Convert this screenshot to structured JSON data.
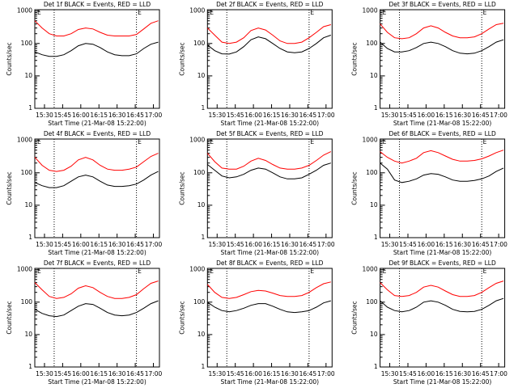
{
  "chart_data": [
    {
      "type": "line",
      "title": "Det 1f BLACK = Events, RED = LLD",
      "xlabel": "Start Time (21-Mar-08 15:22:00)",
      "ylabel": "Counts/sec",
      "log_scale": true,
      "xlim": [
        922,
        1025
      ],
      "ylim": [
        1,
        1100
      ],
      "yticks": [
        1,
        10,
        100,
        1000
      ],
      "xticks": [
        {
          "value": 930,
          "label": "15:30"
        },
        {
          "value": 945,
          "label": "15:45"
        },
        {
          "value": 960,
          "label": "16:00"
        },
        {
          "value": 975,
          "label": "16:15"
        },
        {
          "value": 990,
          "label": "16:30"
        },
        {
          "value": 1005,
          "label": "16:45"
        },
        {
          "value": 1020,
          "label": "17:00"
        }
      ],
      "vlines": [
        938,
        1006
      ],
      "annotations": [
        {
          "text": "E",
          "x": 924
        },
        {
          "text": "E",
          "x": 1007
        }
      ],
      "x": [
        922,
        928,
        934,
        940,
        946,
        952,
        958,
        964,
        970,
        976,
        982,
        988,
        994,
        1000,
        1006,
        1012,
        1018,
        1024
      ],
      "series": [
        {
          "color": "#ff0000",
          "values": [
            500,
            300,
            200,
            170,
            170,
            200,
            270,
            300,
            280,
            220,
            180,
            170,
            170,
            170,
            190,
            280,
            420,
            500
          ]
        },
        {
          "color": "#000000",
          "values": [
            55,
            45,
            40,
            40,
            45,
            60,
            85,
            100,
            95,
            75,
            55,
            45,
            42,
            42,
            48,
            70,
            95,
            110
          ]
        }
      ]
    },
    {
      "type": "line",
      "title": "Det 2f BLACK = Events, RED = LLD",
      "xlabel": "Start Time (21-Mar-08 15:22:00)",
      "ylabel": "Counts/sec",
      "log_scale": true,
      "xlim": [
        922,
        1025
      ],
      "ylim": [
        1,
        1100
      ],
      "yticks": [
        1,
        10,
        100,
        1000
      ],
      "xticks": [
        {
          "value": 930,
          "label": "15:30"
        },
        {
          "value": 945,
          "label": "15:45"
        },
        {
          "value": 960,
          "label": "16:00"
        },
        {
          "value": 975,
          "label": "16:15"
        },
        {
          "value": 990,
          "label": "16:30"
        },
        {
          "value": 1005,
          "label": "16:45"
        },
        {
          "value": 1020,
          "label": "17:00"
        }
      ],
      "vlines": [
        938,
        1006
      ],
      "annotations": [
        {
          "text": "E",
          "x": 924
        },
        {
          "text": "E",
          "x": 1007
        }
      ],
      "x": [
        922,
        928,
        934,
        940,
        946,
        952,
        958,
        964,
        970,
        976,
        982,
        988,
        994,
        1000,
        1006,
        1012,
        1018,
        1024
      ],
      "series": [
        {
          "color": "#ff0000",
          "values": [
            300,
            180,
            110,
            100,
            110,
            150,
            250,
            300,
            260,
            180,
            120,
            100,
            100,
            110,
            150,
            220,
            330,
            380
          ]
        },
        {
          "color": "#000000",
          "values": [
            90,
            60,
            48,
            47,
            55,
            80,
            130,
            160,
            140,
            100,
            70,
            55,
            52,
            55,
            70,
            100,
            150,
            180
          ]
        }
      ]
    },
    {
      "type": "line",
      "title": "Det 3f BLACK = Events, RED = LLD",
      "xlabel": "Start Time (21-Mar-08 15:22:00)",
      "ylabel": "Counts/sec",
      "log_scale": true,
      "xlim": [
        922,
        1025
      ],
      "ylim": [
        1,
        1100
      ],
      "yticks": [
        1,
        10,
        100,
        1000
      ],
      "xticks": [
        {
          "value": 930,
          "label": "15:30"
        },
        {
          "value": 945,
          "label": "15:45"
        },
        {
          "value": 960,
          "label": "16:00"
        },
        {
          "value": 975,
          "label": "16:15"
        },
        {
          "value": 990,
          "label": "16:30"
        },
        {
          "value": 1005,
          "label": "16:45"
        },
        {
          "value": 1020,
          "label": "17:00"
        }
      ],
      "vlines": [
        938,
        1006
      ],
      "annotations": [
        {
          "text": "E",
          "x": 924
        },
        {
          "text": "E",
          "x": 1007
        }
      ],
      "x": [
        922,
        928,
        934,
        940,
        946,
        952,
        958,
        964,
        970,
        976,
        982,
        988,
        994,
        1000,
        1006,
        1012,
        1018,
        1024
      ],
      "series": [
        {
          "color": "#ff0000",
          "values": [
            400,
            220,
            150,
            140,
            150,
            200,
            300,
            350,
            300,
            220,
            170,
            150,
            150,
            160,
            200,
            280,
            380,
            420
          ]
        },
        {
          "color": "#000000",
          "values": [
            110,
            70,
            55,
            55,
            60,
            75,
            100,
            110,
            100,
            80,
            60,
            50,
            48,
            50,
            60,
            80,
            110,
            130
          ]
        }
      ]
    },
    {
      "type": "line",
      "title": "Det 4f BLACK = Events, RED = LLD",
      "xlabel": "Start Time (21-Mar-08 15:22:00)",
      "ylabel": "Counts/sec",
      "log_scale": true,
      "xlim": [
        922,
        1025
      ],
      "ylim": [
        1,
        1100
      ],
      "yticks": [
        1,
        10,
        100,
        1000
      ],
      "xticks": [
        {
          "value": 930,
          "label": "15:30"
        },
        {
          "value": 945,
          "label": "15:45"
        },
        {
          "value": 960,
          "label": "16:00"
        },
        {
          "value": 975,
          "label": "16:15"
        },
        {
          "value": 990,
          "label": "16:30"
        },
        {
          "value": 1005,
          "label": "16:45"
        },
        {
          "value": 1020,
          "label": "17:00"
        }
      ],
      "vlines": [
        938,
        1006
      ],
      "annotations": [
        {
          "text": "E",
          "x": 924
        },
        {
          "text": "E",
          "x": 1007
        }
      ],
      "x": [
        922,
        928,
        934,
        940,
        946,
        952,
        958,
        964,
        970,
        976,
        982,
        988,
        994,
        1000,
        1006,
        1012,
        1018,
        1024
      ],
      "series": [
        {
          "color": "#ff0000",
          "values": [
            300,
            170,
            120,
            110,
            120,
            160,
            250,
            300,
            250,
            170,
            130,
            120,
            120,
            130,
            150,
            220,
            320,
            400
          ]
        },
        {
          "color": "#000000",
          "values": [
            50,
            40,
            35,
            35,
            40,
            55,
            75,
            85,
            75,
            55,
            42,
            38,
            38,
            40,
            45,
            60,
            85,
            110
          ]
        }
      ]
    },
    {
      "type": "line",
      "title": "Det 5f BLACK = Events, RED = LLD",
      "xlabel": "Start Time (21-Mar-08 15:22:00)",
      "ylabel": "Counts/sec",
      "log_scale": true,
      "xlim": [
        922,
        1025
      ],
      "ylim": [
        1,
        1100
      ],
      "yticks": [
        1,
        10,
        100,
        1000
      ],
      "xticks": [
        {
          "value": 930,
          "label": "15:30"
        },
        {
          "value": 945,
          "label": "15:45"
        },
        {
          "value": 960,
          "label": "16:00"
        },
        {
          "value": 975,
          "label": "16:15"
        },
        {
          "value": 990,
          "label": "16:30"
        },
        {
          "value": 1005,
          "label": "16:45"
        },
        {
          "value": 1020,
          "label": "17:00"
        }
      ],
      "vlines": [
        938,
        1006
      ],
      "annotations": [
        {
          "text": "E",
          "x": 924
        },
        {
          "text": "E",
          "x": 1007
        }
      ],
      "x": [
        922,
        928,
        934,
        940,
        946,
        952,
        958,
        964,
        970,
        976,
        982,
        988,
        994,
        1000,
        1006,
        1012,
        1018,
        1024
      ],
      "series": [
        {
          "color": "#ff0000",
          "values": [
            400,
            220,
            140,
            130,
            130,
            160,
            230,
            280,
            240,
            180,
            140,
            130,
            130,
            140,
            170,
            240,
            350,
            450
          ]
        },
        {
          "color": "#000000",
          "values": [
            180,
            120,
            80,
            70,
            75,
            90,
            120,
            140,
            130,
            100,
            75,
            65,
            65,
            70,
            90,
            120,
            170,
            200
          ]
        }
      ]
    },
    {
      "type": "line",
      "title": "Det 6f BLACK = Events, RED = LLD",
      "xlabel": "Start Time (21-Mar-08 15:22:00)",
      "ylabel": "Counts/sec",
      "log_scale": true,
      "xlim": [
        922,
        1025
      ],
      "ylim": [
        1,
        1100
      ],
      "yticks": [
        1,
        10,
        100,
        1000
      ],
      "xticks": [
        {
          "value": 930,
          "label": "15:30"
        },
        {
          "value": 945,
          "label": "15:45"
        },
        {
          "value": 960,
          "label": "16:00"
        },
        {
          "value": 975,
          "label": "16:15"
        },
        {
          "value": 990,
          "label": "16:30"
        },
        {
          "value": 1005,
          "label": "16:45"
        },
        {
          "value": 1020,
          "label": "17:00"
        }
      ],
      "vlines": [
        938,
        1006
      ],
      "annotations": [
        {
          "text": "E",
          "x": 924
        },
        {
          "text": "E",
          "x": 1007
        }
      ],
      "x": [
        922,
        928,
        934,
        940,
        946,
        952,
        958,
        964,
        970,
        976,
        982,
        988,
        994,
        1000,
        1006,
        1012,
        1018,
        1024
      ],
      "series": [
        {
          "color": "#ff0000",
          "values": [
            450,
            300,
            230,
            200,
            230,
            280,
            420,
            480,
            420,
            330,
            260,
            230,
            230,
            240,
            270,
            330,
            420,
            500
          ]
        },
        {
          "color": "#000000",
          "values": [
            200,
            130,
            60,
            50,
            55,
            65,
            85,
            95,
            90,
            75,
            60,
            55,
            55,
            58,
            65,
            80,
            110,
            140
          ]
        }
      ]
    },
    {
      "type": "line",
      "title": "Det 7f BLACK = Events, RED = LLD",
      "xlabel": "Start Time (21-Mar-08 15:22:00)",
      "ylabel": "Counts/sec",
      "log_scale": true,
      "xlim": [
        922,
        1025
      ],
      "ylim": [
        1,
        1100
      ],
      "yticks": [
        1,
        10,
        100,
        1000
      ],
      "xticks": [
        {
          "value": 930,
          "label": "15:30"
        },
        {
          "value": 945,
          "label": "15:45"
        },
        {
          "value": 960,
          "label": "16:00"
        },
        {
          "value": 975,
          "label": "16:15"
        },
        {
          "value": 990,
          "label": "16:30"
        },
        {
          "value": 1005,
          "label": "16:45"
        },
        {
          "value": 1020,
          "label": "17:00"
        }
      ],
      "vlines": [
        938,
        1006
      ],
      "annotations": [
        {
          "text": "E",
          "x": 924
        },
        {
          "text": "E",
          "x": 1007
        }
      ],
      "x": [
        922,
        928,
        934,
        940,
        946,
        952,
        958,
        964,
        970,
        976,
        982,
        988,
        994,
        1000,
        1006,
        1012,
        1018,
        1024
      ],
      "series": [
        {
          "color": "#ff0000",
          "values": [
            400,
            240,
            150,
            130,
            140,
            180,
            270,
            320,
            280,
            200,
            150,
            130,
            130,
            140,
            170,
            260,
            380,
            450
          ]
        },
        {
          "color": "#000000",
          "values": [
            60,
            45,
            38,
            36,
            40,
            55,
            75,
            90,
            85,
            65,
            48,
            40,
            38,
            40,
            48,
            65,
            90,
            110
          ]
        }
      ]
    },
    {
      "type": "line",
      "title": "Det 8f BLACK = Events, RED = LLD",
      "xlabel": "Start Time (21-Mar-08 15:22:00)",
      "ylabel": "Counts/sec",
      "log_scale": true,
      "xlim": [
        922,
        1025
      ],
      "ylim": [
        1,
        1100
      ],
      "yticks": [
        1,
        10,
        100,
        1000
      ],
      "xticks": [
        {
          "value": 930,
          "label": "15:30"
        },
        {
          "value": 945,
          "label": "15:45"
        },
        {
          "value": 960,
          "label": "16:00"
        },
        {
          "value": 975,
          "label": "16:15"
        },
        {
          "value": 990,
          "label": "16:30"
        },
        {
          "value": 1005,
          "label": "16:45"
        },
        {
          "value": 1020,
          "label": "17:00"
        }
      ],
      "vlines": [
        938,
        1006
      ],
      "annotations": [
        {
          "text": "E",
          "x": 924
        },
        {
          "text": "E",
          "x": 1007
        }
      ],
      "x": [
        922,
        928,
        934,
        940,
        946,
        952,
        958,
        964,
        970,
        976,
        982,
        988,
        994,
        1000,
        1006,
        1012,
        1018,
        1024
      ],
      "series": [
        {
          "color": "#ff0000",
          "values": [
            350,
            200,
            140,
            130,
            140,
            170,
            210,
            230,
            220,
            190,
            160,
            150,
            150,
            160,
            200,
            280,
            370,
            420
          ]
        },
        {
          "color": "#000000",
          "values": [
            100,
            70,
            55,
            50,
            55,
            65,
            80,
            90,
            90,
            75,
            60,
            50,
            48,
            50,
            55,
            70,
            95,
            110
          ]
        }
      ]
    },
    {
      "type": "line",
      "title": "Det 9f BLACK = Events, RED = LLD",
      "xlabel": "Start Time (21-Mar-08 15:22:00)",
      "ylabel": "Counts/sec",
      "log_scale": true,
      "xlim": [
        922,
        1025
      ],
      "ylim": [
        1,
        1100
      ],
      "yticks": [
        1,
        10,
        100,
        1000
      ],
      "xticks": [
        {
          "value": 930,
          "label": "15:30"
        },
        {
          "value": 945,
          "label": "15:45"
        },
        {
          "value": 960,
          "label": "16:00"
        },
        {
          "value": 975,
          "label": "16:15"
        },
        {
          "value": 990,
          "label": "16:30"
        },
        {
          "value": 1005,
          "label": "16:45"
        },
        {
          "value": 1020,
          "label": "17:00"
        }
      ],
      "vlines": [
        938,
        1006
      ],
      "annotations": [
        {
          "text": "E",
          "x": 924
        },
        {
          "text": "E",
          "x": 1007
        }
      ],
      "x": [
        922,
        928,
        934,
        940,
        946,
        952,
        958,
        964,
        970,
        976,
        982,
        988,
        994,
        1000,
        1006,
        1012,
        1018,
        1024
      ],
      "series": [
        {
          "color": "#ff0000",
          "values": [
            400,
            240,
            160,
            150,
            160,
            200,
            290,
            330,
            290,
            220,
            170,
            150,
            150,
            160,
            200,
            280,
            380,
            450
          ]
        },
        {
          "color": "#000000",
          "values": [
            110,
            70,
            55,
            50,
            55,
            70,
            100,
            110,
            100,
            80,
            60,
            52,
            50,
            52,
            60,
            80,
            110,
            130
          ]
        }
      ]
    }
  ]
}
